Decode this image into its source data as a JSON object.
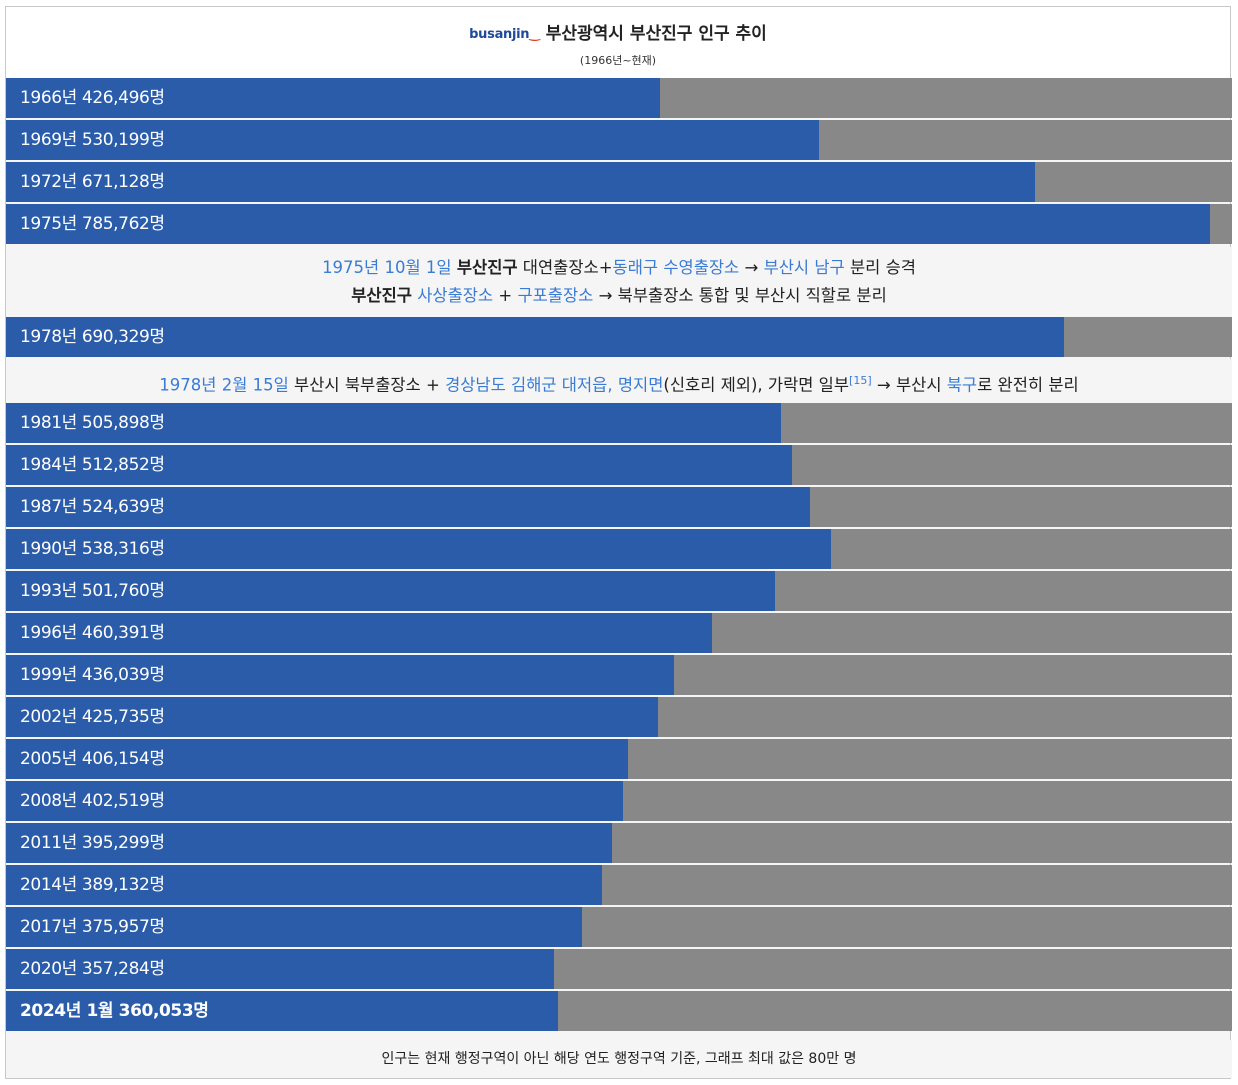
{
  "header": {
    "logo_main": "busanjin",
    "title": "부산광역시 부산진구 인구 추이",
    "subtitle": "(1966년~현재)"
  },
  "chart_data": {
    "type": "bar",
    "orientation": "horizontal",
    "max_value": 800000,
    "bar_color": "#2a5caa",
    "track_color": "#888888",
    "categories": [
      "1966년",
      "1969년",
      "1972년",
      "1975년",
      "1978년",
      "1981년",
      "1984년",
      "1987년",
      "1990년",
      "1993년",
      "1996년",
      "1999년",
      "2002년",
      "2005년",
      "2008년",
      "2011년",
      "2014년",
      "2017년",
      "2020년",
      "2024년 1월"
    ],
    "values": [
      426496,
      530199,
      671128,
      785762,
      690329,
      505898,
      512852,
      524639,
      538316,
      501760,
      460391,
      436039,
      425735,
      406154,
      402519,
      395299,
      389132,
      375957,
      357284,
      360053
    ],
    "labels": [
      "1966년 426,496명",
      "1969년 530,199명",
      "1972년 671,128명",
      "1975년 785,762명",
      "1978년 690,329명",
      "1981년 505,898명",
      "1984년 512,852명",
      "1987년 524,639명",
      "1990년 538,316명",
      "1993년 501,760명",
      "1996년 460,391명",
      "1999년 436,039명",
      "2002년 425,735명",
      "2005년 406,154명",
      "2008년 402,519명",
      "2011년 395,299명",
      "2014년 389,132명",
      "2017년 375,957명",
      "2020년 357,284명",
      "2024년 1월 360,053명"
    ]
  },
  "notes": {
    "n1": {
      "date": "1975년 10월 1일",
      "a": "부산진구",
      "b": " 대연출장소+",
      "c": "동래구 수영출장소",
      "d": " → ",
      "e": "부산시 남구",
      "f": " 분리 승격",
      "g": "부산진구",
      "h": " ",
      "i": "사상출장소",
      "j": " + ",
      "k": "구포출장소",
      "l": " → 북부출장소 통합 및 부산시 직할로 분리"
    },
    "n2": {
      "date": "1978년 2월 15일",
      "a": " 부산시 북부출장소 + ",
      "b": "경상남도 김해군 대저읍, 명지면",
      "c": "(신호리 제외), 가락면 일부",
      "sup": "[15]",
      "d": " → 부산시 ",
      "e": "북구",
      "f": "로 완전히 분리"
    }
  },
  "footer": "인구는 현재 행정구역이 아닌 해당 연도 행정구역 기준, 그래프 최대 값은 80만 명"
}
